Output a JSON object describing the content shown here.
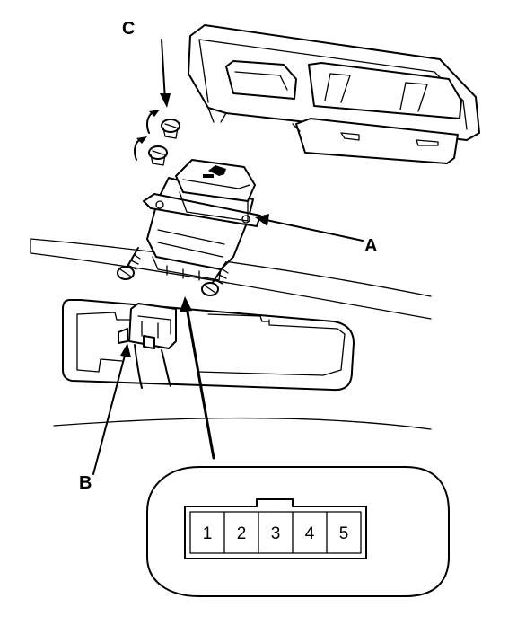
{
  "labels": {
    "a": "A",
    "b": "B",
    "c": "C"
  },
  "connector": {
    "pins": [
      "1",
      "2",
      "3",
      "4",
      "5"
    ]
  }
}
